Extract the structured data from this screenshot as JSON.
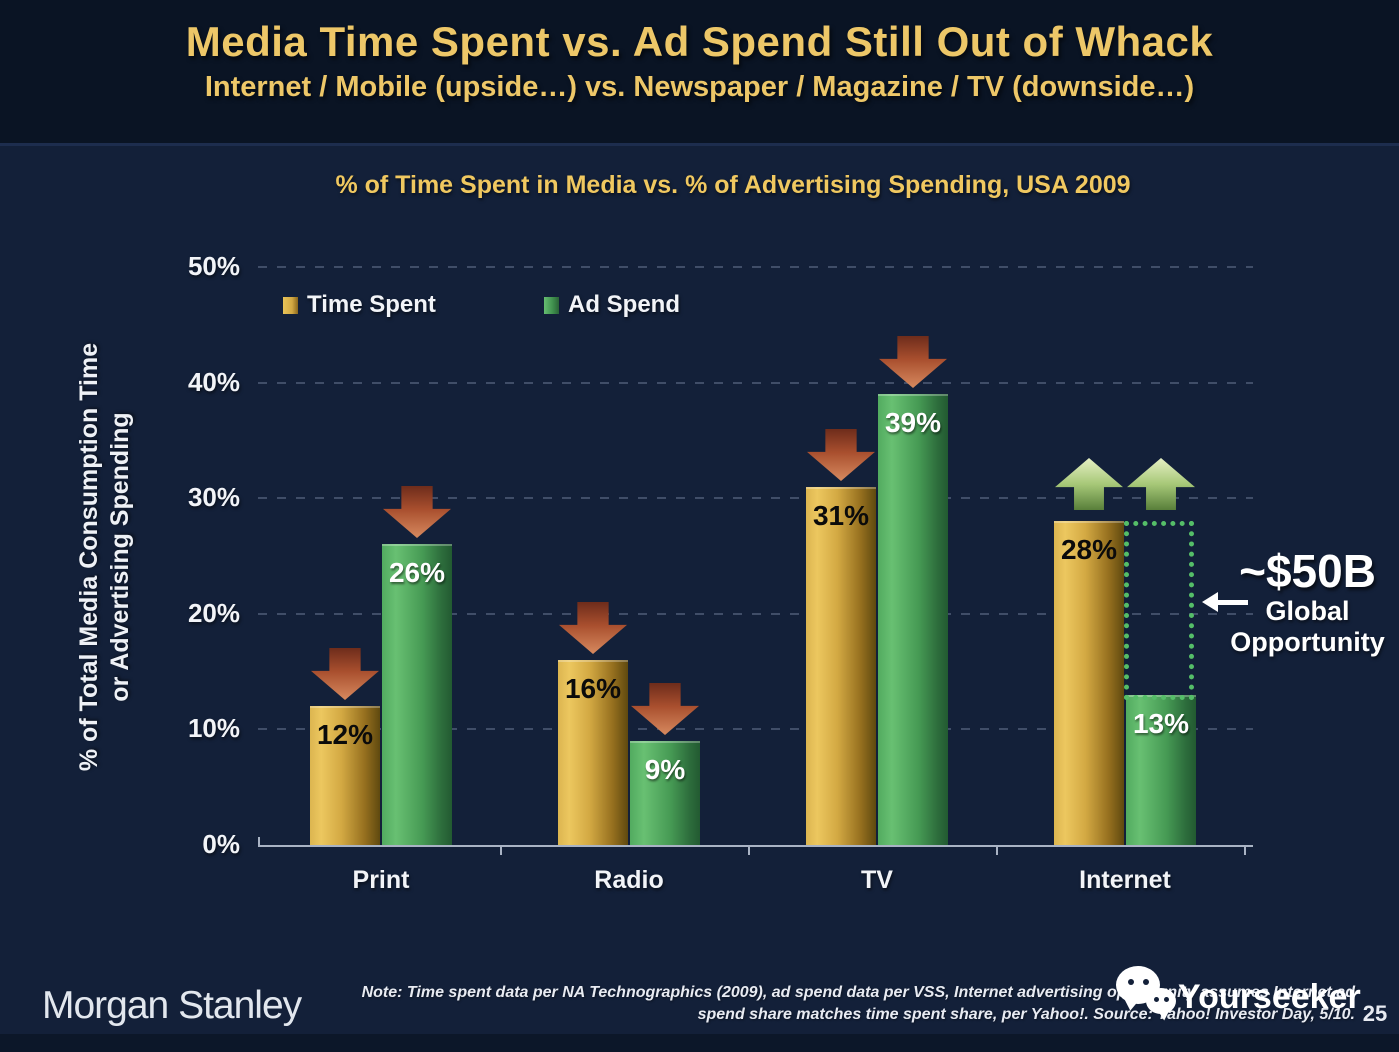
{
  "slide": {
    "title": "Media Time Spent vs. Ad Spend Still Out of Whack",
    "subtitle": "Internet / Mobile (upside…) vs. Newspaper / Magazine / TV (downside…)"
  },
  "chart_data": {
    "type": "bar",
    "title": "% of Time Spent in Media vs. % of Advertising Spending, USA 2009",
    "ylabel_line1": "% of Total Media Consumption Time",
    "ylabel_line2": "or Advertising Spending",
    "categories": [
      "Print",
      "Radio",
      "TV",
      "Internet"
    ],
    "series": [
      {
        "name": "Time Spent",
        "color": "#e2b84f",
        "values": [
          12,
          16,
          31,
          28
        ]
      },
      {
        "name": "Ad Spend",
        "color": "#57ae63",
        "values": [
          26,
          9,
          39,
          13
        ]
      }
    ],
    "yticks": [
      "0%",
      "10%",
      "20%",
      "30%",
      "40%",
      "50%"
    ],
    "ylim": [
      0,
      50
    ],
    "grid": "horizontal-dashed",
    "legend_position": "top-left-inside",
    "arrows": [
      [
        "down",
        "down"
      ],
      [
        "down",
        "down"
      ],
      [
        "down",
        "down"
      ],
      [
        "up",
        "up"
      ]
    ]
  },
  "annotation": {
    "value": "~$50B",
    "label_line1": "Global",
    "label_line2": "Opportunity",
    "box_color": "#55be68"
  },
  "footer": {
    "brand": "Morgan Stanley",
    "note_line1": "Note: Time spent data per NA Technographics (2009), ad spend data per VSS, Internet advertising opportunity assumes Internet ad",
    "note_line2": "spend share matches time spent share, per Yahoo!. Source: Yahoo! Investor Day, 5/10.",
    "watermark": "Yourseeker",
    "page_number": "25"
  },
  "colors": {
    "background": "#132039",
    "header_background": "#0a1424",
    "title_gold": "#edc768",
    "bar_gold": "#e2b84f",
    "bar_green": "#57ae63",
    "down_arrow": "#b75b38",
    "up_arrow": "#a7c878",
    "axis": "#a9b3c4"
  }
}
